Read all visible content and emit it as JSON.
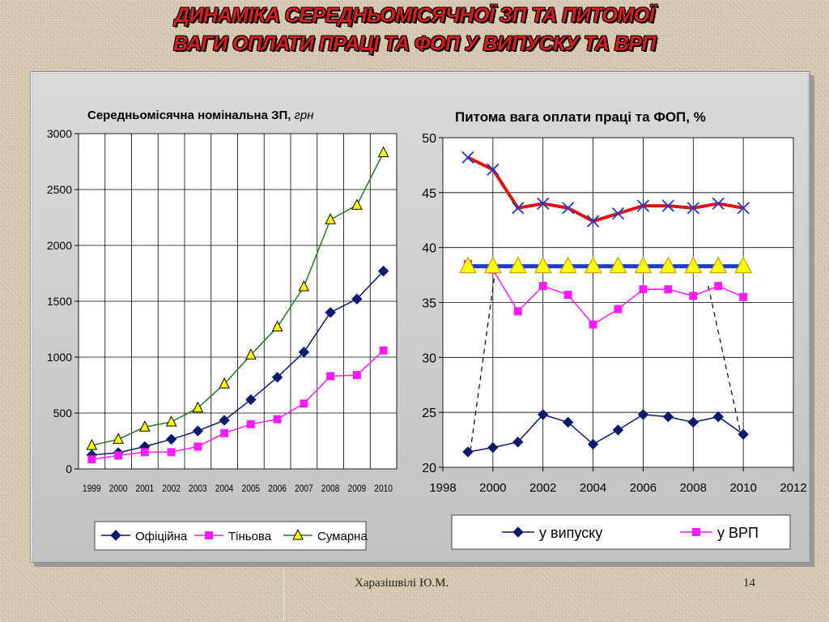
{
  "title": {
    "line1": "ДИНАМІКА  СЕРЕДНЬОМІСЯЧНОЇ ЗП ТА ПИТОМОЇ",
    "line2": "ВАГИ ОПЛАТИ ПРАЦІ ТА ФОП У ВИПУСКУ ТА ВРП"
  },
  "footer": {
    "author": "Харазішвілі Ю.М.",
    "page": "14"
  },
  "chart_data": [
    {
      "type": "line",
      "title": "Середньомісячна номінальна ЗП,",
      "title_unit": "грн",
      "categories": [
        "1999",
        "2000",
        "2001",
        "2002",
        "2003",
        "2004",
        "2005",
        "2006",
        "2007",
        "2008",
        "2009",
        "2010"
      ],
      "ylim": [
        0,
        3000
      ],
      "yticks": [
        "0",
        "500",
        "1000",
        "1500",
        "2000",
        "2500",
        "3000"
      ],
      "grid": true,
      "legend_position": "bottom",
      "series": [
        {
          "name": "Офіційна",
          "color": "#0a1a6e",
          "marker": "diamond",
          "values": [
            125,
            145,
            200,
            265,
            340,
            435,
            620,
            820,
            1045,
            1400,
            1520,
            1770
          ]
        },
        {
          "name": "Тіньова",
          "color": "#ff1aff",
          "marker": "square",
          "values": [
            85,
            120,
            150,
            150,
            200,
            320,
            400,
            445,
            585,
            830,
            840,
            1060
          ]
        },
        {
          "name": "Сумарна",
          "color": "#1e7a1e",
          "marker": "triangle",
          "values": [
            210,
            265,
            375,
            420,
            545,
            760,
            1020,
            1270,
            1630,
            2230,
            2360,
            2830
          ]
        }
      ]
    },
    {
      "type": "line",
      "title": "Питома вага оплати праці та ФОП, %",
      "xlim": [
        1998,
        2012
      ],
      "xticks": [
        "1998",
        "2000",
        "2002",
        "2004",
        "2006",
        "2008",
        "2010",
        "2012"
      ],
      "ylim": [
        20,
        50
      ],
      "yticks": [
        "20",
        "25",
        "30",
        "35",
        "40",
        "45",
        "50"
      ],
      "grid": true,
      "legend_position": "bottom",
      "x": [
        1999,
        2000,
        2001,
        2002,
        2003,
        2004,
        2005,
        2006,
        2007,
        2008,
        2009,
        2010
      ],
      "series": [
        {
          "name": "у випуску",
          "color": "#0a1a6e",
          "marker": "diamond",
          "values": [
            21.4,
            21.8,
            22.3,
            24.8,
            24.1,
            22.1,
            23.4,
            24.8,
            24.6,
            24.1,
            24.6,
            23.0
          ]
        },
        {
          "name": "у ВРП",
          "color": "#ff1aff",
          "marker": "square",
          "values": [
            38.5,
            38.0,
            34.2,
            36.5,
            35.7,
            33.0,
            34.4,
            36.2,
            36.2,
            35.6,
            36.5,
            35.5
          ]
        },
        {
          "color": "#e01010",
          "marker": "x-cross",
          "values": [
            48.2,
            47.1,
            43.6,
            44.0,
            43.6,
            42.4,
            43.1,
            43.8,
            43.8,
            43.6,
            44.0,
            43.6
          ]
        },
        {
          "color": "#1a3ad0",
          "marker": "triangle-yellow",
          "values": [
            38.3,
            38.3,
            38.3,
            38.3,
            38.3,
            38.3,
            38.3,
            38.3,
            38.3,
            38.3,
            38.3,
            38.3
          ]
        }
      ],
      "annotations": [
        {
          "type": "dashed-line",
          "from": [
            2000.1,
            38.0
          ],
          "to": [
            1999.1,
            21.5
          ]
        },
        {
          "type": "dashed-line",
          "from": [
            2008.6,
            36.5
          ],
          "to": [
            2009.9,
            23.0
          ]
        }
      ]
    }
  ]
}
